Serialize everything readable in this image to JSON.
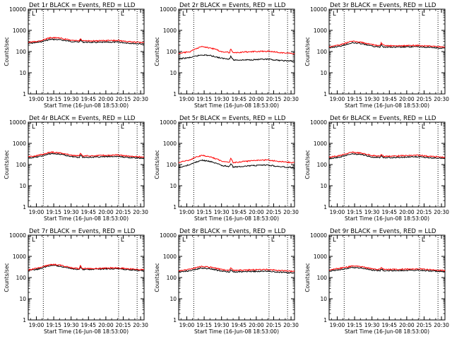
{
  "figure": {
    "xlabel": "Start Time (16-Jun-08 18:53:00)",
    "ylabel": "Counts/sec",
    "x_tick_labels": [
      "19:00",
      "19:15",
      "19:30",
      "19:45",
      "20:00",
      "20:15",
      "20:30"
    ],
    "y_tick_labels": [
      "1",
      "10",
      "100",
      "1000",
      "10000"
    ],
    "flag_label": "L",
    "colors": {
      "events": "#000000",
      "lld": "#ff0000",
      "axes": "#000000",
      "background": "#ffffff"
    }
  },
  "chart_data": [
    {
      "type": "line",
      "title": "Det 1r BLACK = Events, RED = LLD",
      "xlabel": "Start Time (16-Jun-08 18:53:00)",
      "ylabel": "Counts/sec",
      "x_range": [
        "18:53",
        "20:33"
      ],
      "ylim": [
        1,
        10000
      ],
      "y_scale": "log",
      "grid": false,
      "vlines": [
        "19:06",
        "20:11",
        "20:27"
      ],
      "x": [
        "18:53",
        "19:03",
        "19:13",
        "19:20",
        "19:30",
        "19:37",
        "19:38",
        "19:40",
        "19:50",
        "20:00",
        "20:10",
        "20:20",
        "20:33"
      ],
      "series": [
        {
          "name": "Events",
          "color": "#000000",
          "values": [
            240,
            280,
            380,
            360,
            300,
            280,
            350,
            280,
            270,
            275,
            280,
            250,
            225
          ]
        },
        {
          "name": "LLD",
          "color": "#ff0000",
          "values": [
            270,
            320,
            460,
            430,
            340,
            320,
            400,
            320,
            320,
            330,
            335,
            290,
            260
          ]
        }
      ]
    },
    {
      "type": "line",
      "title": "Det 2r BLACK = Events, RED = LLD",
      "xlabel": "Start Time (16-Jun-08 18:53:00)",
      "ylabel": "Counts/sec",
      "x_range": [
        "18:53",
        "20:33"
      ],
      "ylim": [
        1,
        10000
      ],
      "y_scale": "log",
      "grid": false,
      "vlines": [
        "19:06",
        "20:11",
        "20:27"
      ],
      "x": [
        "18:53",
        "19:03",
        "19:13",
        "19:20",
        "19:30",
        "19:37",
        "19:38",
        "19:40",
        "19:50",
        "20:00",
        "20:10",
        "20:20",
        "20:33"
      ],
      "series": [
        {
          "name": "Events",
          "color": "#000000",
          "values": [
            45,
            52,
            70,
            65,
            48,
            45,
            60,
            40,
            40,
            42,
            43,
            38,
            35
          ]
        },
        {
          "name": "LLD",
          "color": "#ff0000",
          "values": [
            80,
            100,
            170,
            150,
            100,
            90,
            135,
            85,
            95,
            100,
            105,
            90,
            80
          ]
        }
      ]
    },
    {
      "type": "line",
      "title": "Det 3r BLACK = Events, RED = LLD",
      "xlabel": "Start Time (16-Jun-08 18:53:00)",
      "ylabel": "Counts/sec",
      "x_range": [
        "18:53",
        "20:33"
      ],
      "ylim": [
        1,
        10000
      ],
      "y_scale": "log",
      "grid": false,
      "vlines": [
        "19:06",
        "20:11",
        "20:27"
      ],
      "x": [
        "18:53",
        "19:03",
        "19:13",
        "19:20",
        "19:30",
        "19:37",
        "19:38",
        "19:40",
        "19:50",
        "20:00",
        "20:10",
        "20:20",
        "20:33"
      ],
      "series": [
        {
          "name": "Events",
          "color": "#000000",
          "values": [
            150,
            180,
            260,
            240,
            180,
            165,
            220,
            165,
            160,
            165,
            170,
            155,
            140
          ]
        },
        {
          "name": "LLD",
          "color": "#ff0000",
          "values": [
            170,
            210,
            310,
            280,
            210,
            190,
            250,
            190,
            185,
            190,
            195,
            180,
            160
          ]
        }
      ]
    },
    {
      "type": "line",
      "title": "Det 4r BLACK = Events, RED = LLD",
      "xlabel": "Start Time (16-Jun-08 18:53:00)",
      "ylabel": "Counts/sec",
      "x_range": [
        "18:53",
        "20:33"
      ],
      "ylim": [
        1,
        10000
      ],
      "y_scale": "log",
      "grid": false,
      "vlines": [
        "19:06",
        "20:11",
        "20:27"
      ],
      "x": [
        "18:53",
        "19:03",
        "19:13",
        "19:20",
        "19:30",
        "19:37",
        "19:38",
        "19:40",
        "19:50",
        "20:00",
        "20:10",
        "20:20",
        "20:33"
      ],
      "series": [
        {
          "name": "Events",
          "color": "#000000",
          "values": [
            200,
            240,
            330,
            310,
            240,
            220,
            290,
            220,
            225,
            235,
            240,
            215,
            195
          ]
        },
        {
          "name": "LLD",
          "color": "#ff0000",
          "values": [
            230,
            280,
            390,
            360,
            280,
            255,
            330,
            255,
            265,
            275,
            280,
            250,
            225
          ]
        }
      ]
    },
    {
      "type": "line",
      "title": "Det 5r BLACK = Events, RED = LLD",
      "xlabel": "Start Time (16-Jun-08 18:53:00)",
      "ylabel": "Counts/sec",
      "x_range": [
        "18:53",
        "20:33"
      ],
      "ylim": [
        1,
        10000
      ],
      "y_scale": "log",
      "grid": false,
      "vlines": [
        "19:06",
        "20:11",
        "20:27"
      ],
      "x": [
        "18:53",
        "19:03",
        "19:13",
        "19:20",
        "19:30",
        "19:37",
        "19:38",
        "19:40",
        "19:50",
        "20:00",
        "20:10",
        "20:20",
        "20:33"
      ],
      "series": [
        {
          "name": "Events",
          "color": "#000000",
          "values": [
            70,
            100,
            160,
            140,
            90,
            80,
            115,
            75,
            85,
            90,
            95,
            80,
            70
          ]
        },
        {
          "name": "LLD",
          "color": "#ff0000",
          "values": [
            120,
            170,
            270,
            230,
            145,
            130,
            200,
            125,
            140,
            155,
            165,
            140,
            120
          ]
        }
      ]
    },
    {
      "type": "line",
      "title": "Det 6r BLACK = Events, RED = LLD",
      "xlabel": "Start Time (16-Jun-08 18:53:00)",
      "ylabel": "Counts/sec",
      "x_range": [
        "18:53",
        "20:33"
      ],
      "ylim": [
        1,
        10000
      ],
      "y_scale": "log",
      "grid": false,
      "vlines": [
        "19:06",
        "20:11",
        "20:27"
      ],
      "x": [
        "18:53",
        "19:03",
        "19:13",
        "19:20",
        "19:30",
        "19:37",
        "19:38",
        "19:40",
        "19:50",
        "20:00",
        "20:10",
        "20:20",
        "20:33"
      ],
      "series": [
        {
          "name": "Events",
          "color": "#000000",
          "values": [
            190,
            230,
            320,
            300,
            230,
            210,
            270,
            210,
            215,
            225,
            235,
            210,
            190
          ]
        },
        {
          "name": "LLD",
          "color": "#ff0000",
          "values": [
            220,
            270,
            380,
            350,
            270,
            245,
            310,
            245,
            255,
            265,
            275,
            245,
            220
          ]
        }
      ]
    },
    {
      "type": "line",
      "title": "Det 7r BLACK = Events, RED = LLD",
      "xlabel": "Start Time (16-Jun-08 18:53:00)",
      "ylabel": "Counts/sec",
      "x_range": [
        "18:53",
        "20:33"
      ],
      "ylim": [
        1,
        10000
      ],
      "y_scale": "log",
      "grid": false,
      "vlines": [
        "19:06",
        "20:11",
        "20:27"
      ],
      "x": [
        "18:53",
        "19:03",
        "19:13",
        "19:20",
        "19:30",
        "19:37",
        "19:38",
        "19:40",
        "19:50",
        "20:00",
        "20:10",
        "20:20",
        "20:33"
      ],
      "series": [
        {
          "name": "Events",
          "color": "#000000",
          "values": [
            210,
            260,
            380,
            350,
            260,
            240,
            320,
            240,
            245,
            255,
            265,
            235,
            210
          ]
        },
        {
          "name": "LLD",
          "color": "#ff0000",
          "values": [
            230,
            290,
            420,
            390,
            290,
            265,
            350,
            265,
            270,
            280,
            290,
            260,
            230
          ]
        }
      ]
    },
    {
      "type": "line",
      "title": "Det 8r BLACK = Events, RED = LLD",
      "xlabel": "Start Time (16-Jun-08 18:53:00)",
      "ylabel": "Counts/sec",
      "x_range": [
        "18:53",
        "20:33"
      ],
      "ylim": [
        1,
        10000
      ],
      "y_scale": "log",
      "grid": false,
      "vlines": [
        "19:06",
        "20:11",
        "20:27"
      ],
      "x": [
        "18:53",
        "19:03",
        "19:13",
        "19:20",
        "19:30",
        "19:37",
        "19:38",
        "19:40",
        "19:50",
        "20:00",
        "20:10",
        "20:20",
        "20:33"
      ],
      "series": [
        {
          "name": "Events",
          "color": "#000000",
          "values": [
            180,
            210,
            280,
            260,
            200,
            185,
            240,
            185,
            190,
            195,
            200,
            180,
            165
          ]
        },
        {
          "name": "LLD",
          "color": "#ff0000",
          "values": [
            210,
            250,
            340,
            310,
            240,
            220,
            280,
            220,
            225,
            235,
            240,
            215,
            195
          ]
        }
      ]
    },
    {
      "type": "line",
      "title": "Det 9r BLACK = Events, RED = LLD",
      "xlabel": "Start Time (16-Jun-08 18:53:00)",
      "ylabel": "Counts/sec",
      "x_range": [
        "18:53",
        "20:33"
      ],
      "ylim": [
        1,
        10000
      ],
      "y_scale": "log",
      "grid": false,
      "vlines": [
        "19:06",
        "20:11",
        "20:27"
      ],
      "x": [
        "18:53",
        "19:03",
        "19:13",
        "19:20",
        "19:30",
        "19:37",
        "19:38",
        "19:40",
        "19:50",
        "20:00",
        "20:10",
        "20:20",
        "20:33"
      ],
      "series": [
        {
          "name": "Events",
          "color": "#000000",
          "values": [
            200,
            240,
            300,
            285,
            225,
            210,
            260,
            210,
            215,
            220,
            225,
            205,
            190
          ]
        },
        {
          "name": "LLD",
          "color": "#ff0000",
          "values": [
            230,
            280,
            350,
            330,
            260,
            240,
            300,
            240,
            245,
            250,
            255,
            235,
            215
          ]
        }
      ]
    }
  ]
}
